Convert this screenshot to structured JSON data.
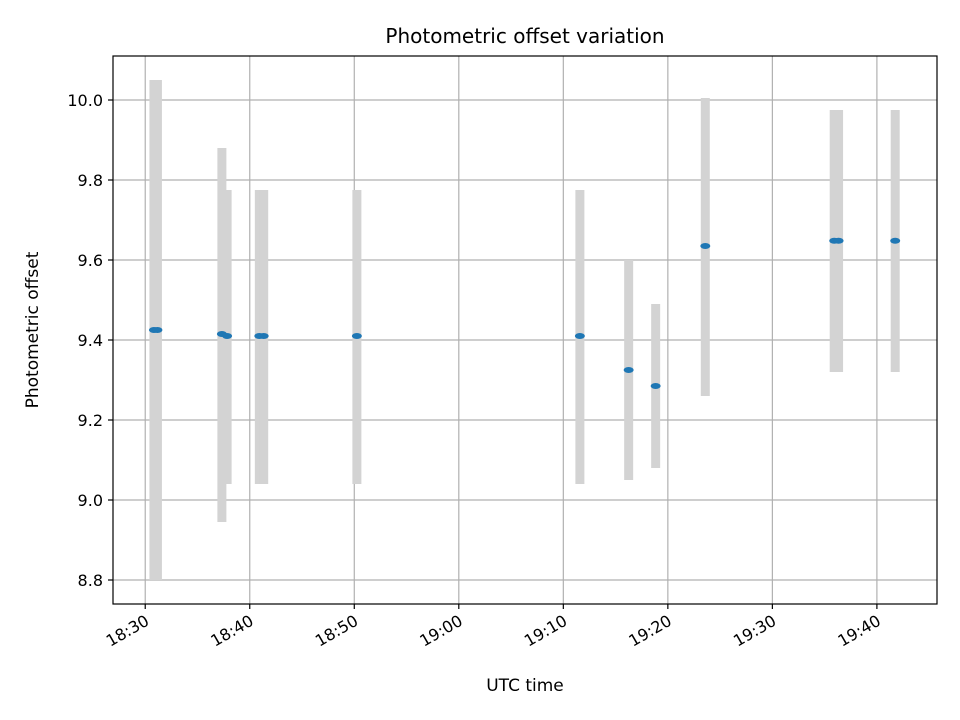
{
  "chart_data": {
    "type": "scatter",
    "title": "Photometric offset variation",
    "xlabel": "UTC time",
    "ylabel": "Photometric offset",
    "xlim": [
      "18:26:55",
      "19:45:45"
    ],
    "ylim": [
      8.74,
      10.11
    ],
    "xticks": [
      "18:30",
      "18:40",
      "18:50",
      "19:00",
      "19:10",
      "19:20",
      "19:30",
      "19:40"
    ],
    "yticks": [
      "8.8",
      "9.0",
      "9.2",
      "9.4",
      "9.6",
      "9.8",
      "10.0"
    ],
    "grid": true,
    "point_color": "#1f77b4",
    "errorbar_color": "#d3d3d3",
    "points": [
      {
        "t": "18:30:50",
        "y": 9.425,
        "ylow": 8.8,
        "yhigh": 10.05
      },
      {
        "t": "18:31:10",
        "y": 9.425,
        "ylow": 8.8,
        "yhigh": 10.05
      },
      {
        "t": "18:37:20",
        "y": 9.415,
        "ylow": 8.945,
        "yhigh": 9.88
      },
      {
        "t": "18:37:50",
        "y": 9.41,
        "ylow": 9.04,
        "yhigh": 9.775
      },
      {
        "t": "18:40:55",
        "y": 9.41,
        "ylow": 9.04,
        "yhigh": 9.775
      },
      {
        "t": "18:41:20",
        "y": 9.41,
        "ylow": 9.04,
        "yhigh": 9.775
      },
      {
        "t": "18:50:15",
        "y": 9.41,
        "ylow": 9.04,
        "yhigh": 9.775
      },
      {
        "t": "19:11:35",
        "y": 9.41,
        "ylow": 9.04,
        "yhigh": 9.775
      },
      {
        "t": "19:16:15",
        "y": 9.325,
        "ylow": 9.05,
        "yhigh": 9.6
      },
      {
        "t": "19:18:50",
        "y": 9.285,
        "ylow": 9.08,
        "yhigh": 9.49
      },
      {
        "t": "19:23:35",
        "y": 9.635,
        "ylow": 9.26,
        "yhigh": 10.005
      },
      {
        "t": "19:35:55",
        "y": 9.648,
        "ylow": 9.32,
        "yhigh": 9.975
      },
      {
        "t": "19:36:20",
        "y": 9.648,
        "ylow": 9.32,
        "yhigh": 9.975
      },
      {
        "t": "19:41:45",
        "y": 9.648,
        "ylow": 9.32,
        "yhigh": 9.975
      }
    ]
  }
}
